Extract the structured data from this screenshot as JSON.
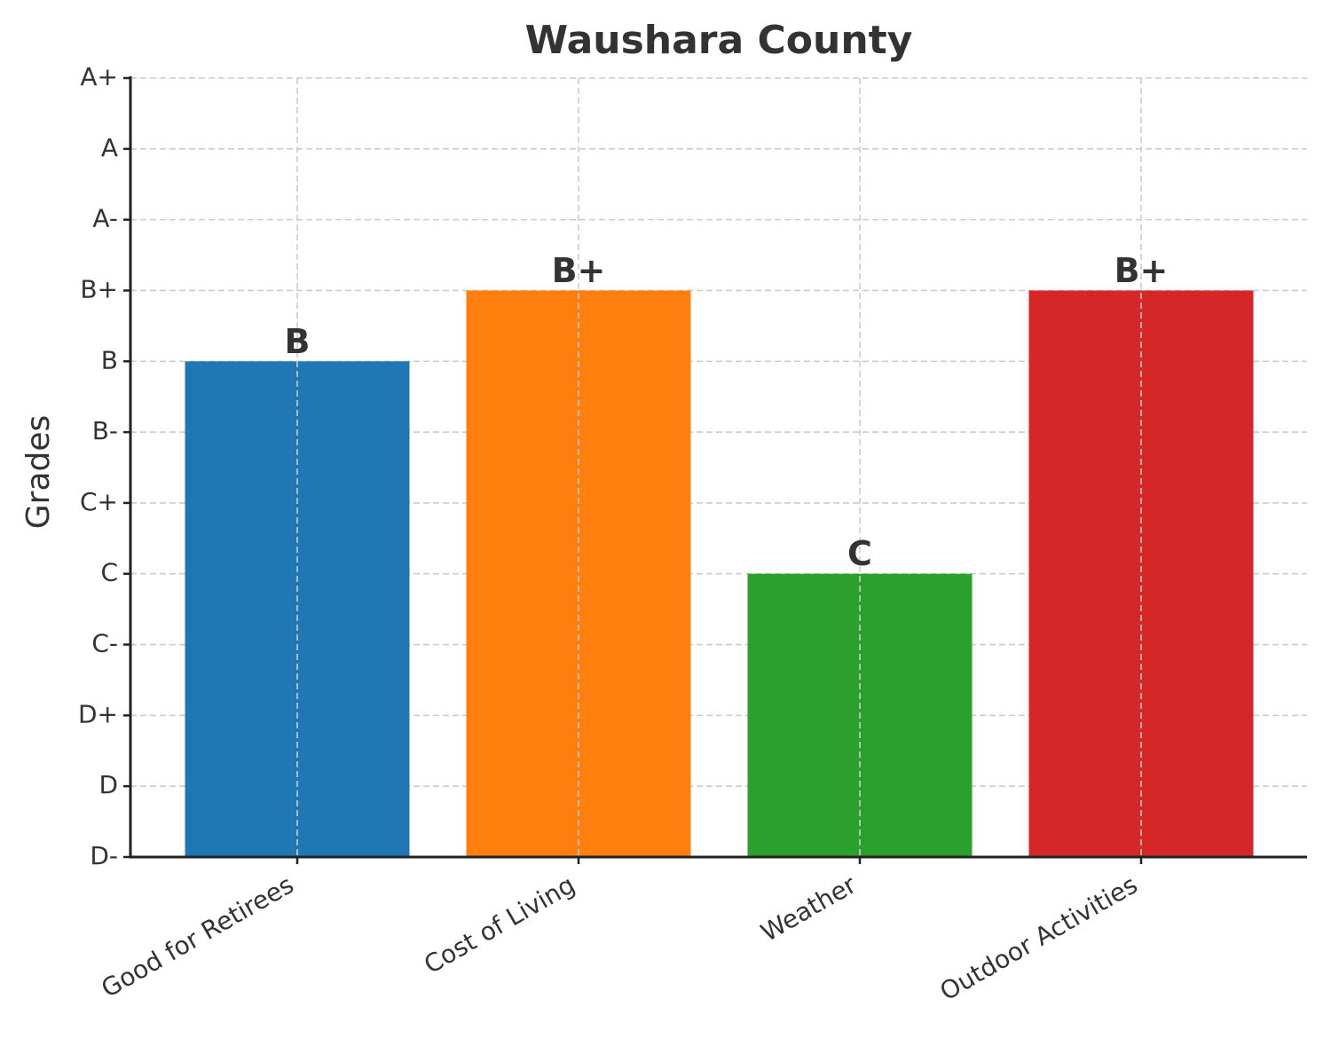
{
  "chart_data": {
    "type": "bar",
    "title": "Waushara County",
    "y_label": "Grades",
    "categories": [
      "Good for Retirees",
      "Cost of Living",
      "Weather",
      "Outdoor Activities"
    ],
    "values": [
      7,
      8,
      4,
      8
    ],
    "value_labels": [
      "B",
      "B+",
      "C",
      "B+"
    ],
    "colors": [
      "#1f77b4",
      "#ff7f0e",
      "#2ca02c",
      "#d62728"
    ],
    "ylim": [
      0,
      11
    ],
    "yticks": [
      {
        "value": 0,
        "label": "D-"
      },
      {
        "value": 1,
        "label": "D"
      },
      {
        "value": 2,
        "label": "D+"
      },
      {
        "value": 3,
        "label": "C-"
      },
      {
        "value": 4,
        "label": "C"
      },
      {
        "value": 5,
        "label": "C+"
      },
      {
        "value": 6,
        "label": "B-"
      },
      {
        "value": 7,
        "label": "B"
      },
      {
        "value": 8,
        "label": "B+"
      },
      {
        "value": 9,
        "label": "A-"
      },
      {
        "value": 10,
        "label": "A"
      },
      {
        "value": 11,
        "label": "A+"
      }
    ],
    "grid": true
  }
}
